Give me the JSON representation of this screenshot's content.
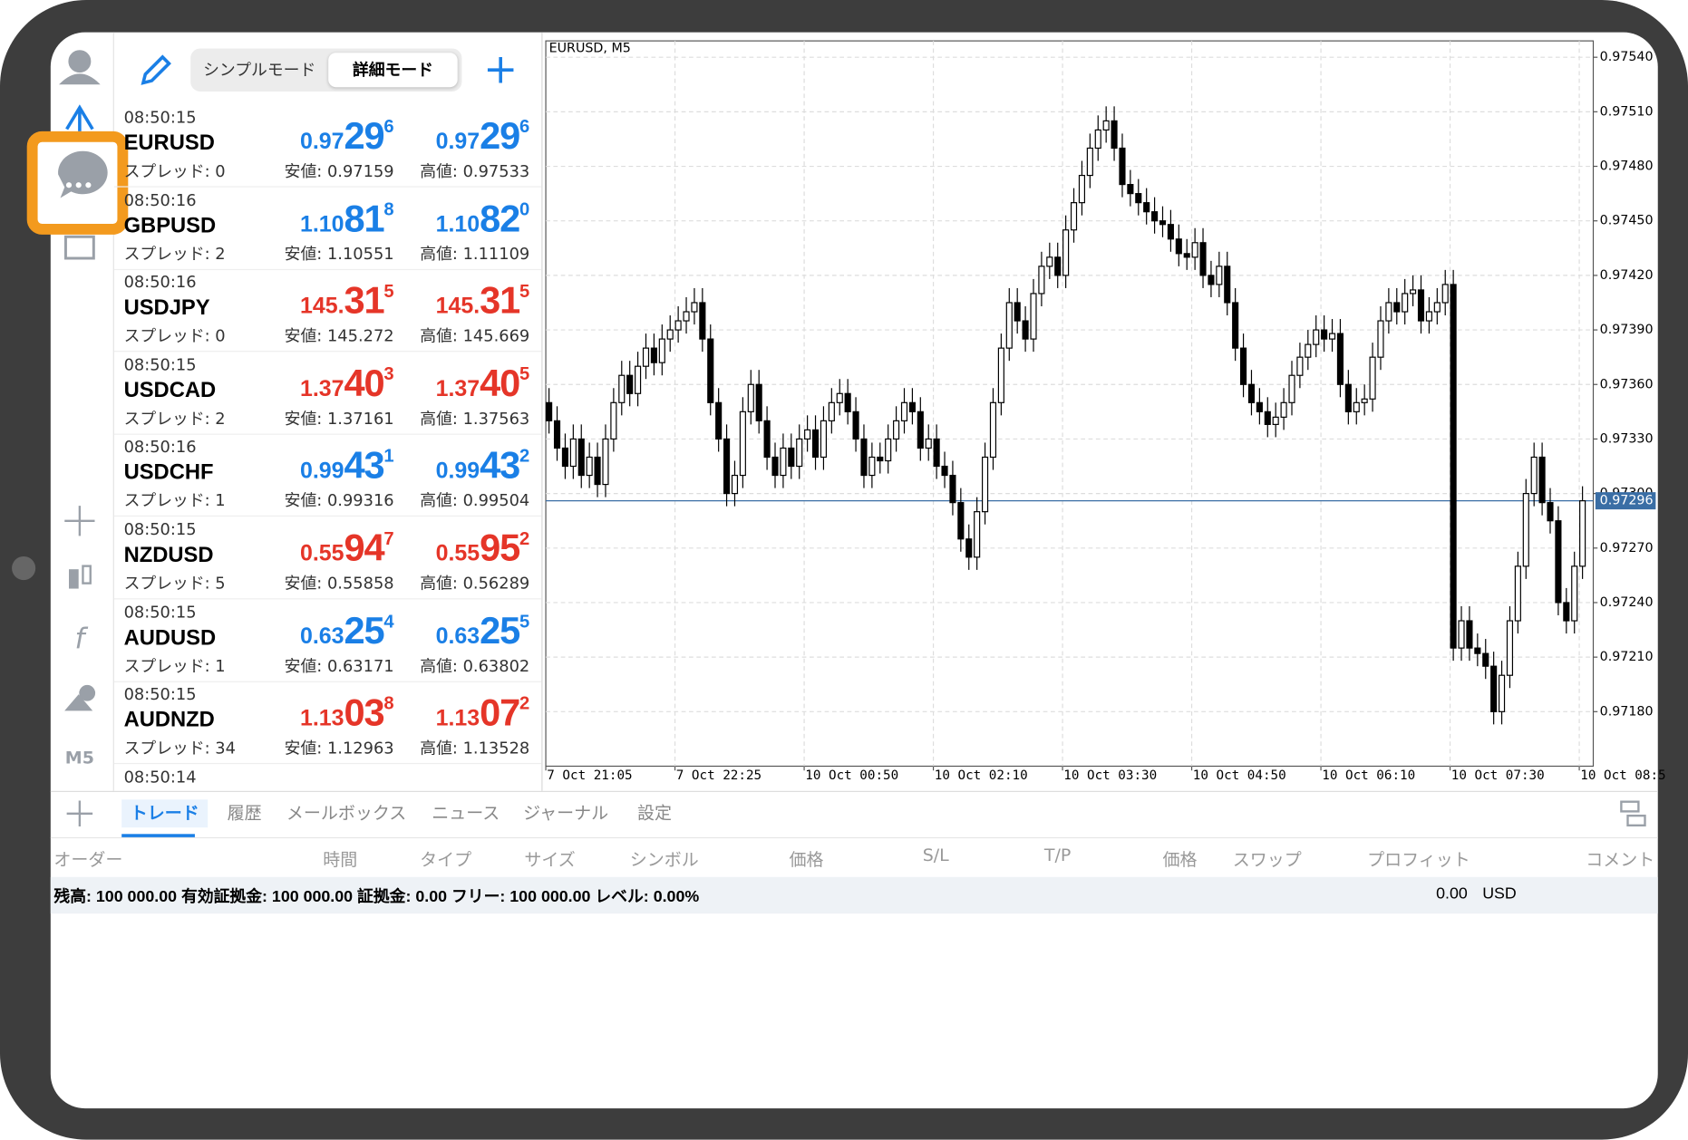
{
  "sidebar": {
    "timeframe": "M5"
  },
  "watchlist": {
    "modes": [
      "シンプルモード",
      "詳細モード"
    ],
    "rows": [
      {
        "time": "08:50:15",
        "symbol": "EURUSD",
        "spread": "スプレッド: 0",
        "color": "#1a7fe6",
        "bid": {
          "prefix": "0.97",
          "big": "29",
          "sup": "6"
        },
        "ask": {
          "prefix": "0.97",
          "big": "29",
          "sup": "6"
        },
        "low": "安値: 0.97159",
        "high": "高値: 0.97533"
      },
      {
        "time": "08:50:16",
        "symbol": "GBPUSD",
        "spread": "スプレッド: 2",
        "color": "#1a7fe6",
        "bid": {
          "prefix": "1.10",
          "big": "81",
          "sup": "8"
        },
        "ask": {
          "prefix": "1.10",
          "big": "82",
          "sup": "0"
        },
        "low": "安値: 1.10551",
        "high": "高値: 1.11109"
      },
      {
        "time": "08:50:16",
        "symbol": "USDJPY",
        "spread": "スプレッド: 0",
        "color": "#e53528",
        "bid": {
          "prefix": "145.",
          "big": "31",
          "sup": "5"
        },
        "ask": {
          "prefix": "145.",
          "big": "31",
          "sup": "5"
        },
        "low": "安値: 145.272",
        "high": "高値: 145.669"
      },
      {
        "time": "08:50:15",
        "symbol": "USDCAD",
        "spread": "スプレッド: 2",
        "color": "#e53528",
        "bid": {
          "prefix": "1.37",
          "big": "40",
          "sup": "3"
        },
        "ask": {
          "prefix": "1.37",
          "big": "40",
          "sup": "5"
        },
        "low": "安値: 1.37161",
        "high": "高値: 1.37563"
      },
      {
        "time": "08:50:16",
        "symbol": "USDCHF",
        "spread": "スプレッド: 1",
        "color": "#1a7fe6",
        "bid": {
          "prefix": "0.99",
          "big": "43",
          "sup": "1"
        },
        "ask": {
          "prefix": "0.99",
          "big": "43",
          "sup": "2"
        },
        "low": "安値: 0.99316",
        "high": "高値: 0.99504"
      },
      {
        "time": "08:50:15",
        "symbol": "NZDUSD",
        "spread": "スプレッド: 5",
        "color": "#e53528",
        "bid": {
          "prefix": "0.55",
          "big": "94",
          "sup": "7"
        },
        "ask": {
          "prefix": "0.55",
          "big": "95",
          "sup": "2"
        },
        "low": "安値: 0.55858",
        "high": "高値: 0.56289"
      },
      {
        "time": "08:50:15",
        "symbol": "AUDUSD",
        "spread": "スプレッド: 1",
        "color": "#1a7fe6",
        "bid": {
          "prefix": "0.63",
          "big": "25",
          "sup": "4"
        },
        "ask": {
          "prefix": "0.63",
          "big": "25",
          "sup": "5"
        },
        "low": "安値: 0.63171",
        "high": "高値: 0.63802"
      },
      {
        "time": "08:50:15",
        "symbol": "AUDNZD",
        "spread": "スプレッド: 34",
        "color": "#e53528",
        "bid": {
          "prefix": "1.13",
          "big": "03",
          "sup": "8"
        },
        "ask": {
          "prefix": "1.13",
          "big": "07",
          "sup": "2"
        },
        "low": "安値: 1.12963",
        "high": "高値: 1.13528"
      },
      {
        "time": "08:50:14"
      }
    ]
  },
  "chart_data": {
    "type": "candlestick",
    "title": "EURUSD, M5",
    "grid": true,
    "up_color": "#ffffff",
    "down_color": "#000000",
    "ylim": [
      0.9715,
      0.97549
    ],
    "yticks": [
      {
        "value": 0.9754,
        "label": "0.97540"
      },
      {
        "value": 0.9751,
        "label": "0.97510"
      },
      {
        "value": 0.9748,
        "label": "0.97480"
      },
      {
        "value": 0.9745,
        "label": "0.97450"
      },
      {
        "value": 0.9742,
        "label": "0.97420"
      },
      {
        "value": 0.9739,
        "label": "0.97390"
      },
      {
        "value": 0.9736,
        "label": "0.97360"
      },
      {
        "value": 0.9733,
        "label": "0.97330"
      },
      {
        "value": 0.973,
        "label": "0.97300"
      },
      {
        "value": 0.9727,
        "label": "0.97270"
      },
      {
        "value": 0.9724,
        "label": "0.97240"
      },
      {
        "value": 0.9721,
        "label": "0.97210"
      },
      {
        "value": 0.9718,
        "label": "0.97180"
      }
    ],
    "current_price": 0.97296,
    "current_color": "#3a6ea5",
    "time_labels": [
      "7 Oct 21:05",
      "7 Oct 22:25",
      "10 Oct 00:50",
      "10 Oct 02:10",
      "10 Oct 03:30",
      "10 Oct 04:50",
      "10 Oct 06:10",
      "10 Oct 07:30",
      "10 Oct 08:5"
    ],
    "candles": [
      [
        0.9735,
        0.97358,
        0.97333,
        0.9734
      ],
      [
        0.9734,
        0.97348,
        0.97318,
        0.97325
      ],
      [
        0.97325,
        0.97333,
        0.97308,
        0.97315
      ],
      [
        0.97315,
        0.97338,
        0.97308,
        0.9733
      ],
      [
        0.9733,
        0.97338,
        0.97303,
        0.9731
      ],
      [
        0.9731,
        0.97328,
        0.97303,
        0.9732
      ],
      [
        0.9732,
        0.97328,
        0.97298,
        0.97305
      ],
      [
        0.97305,
        0.97338,
        0.97298,
        0.9733
      ],
      [
        0.9733,
        0.97358,
        0.97323,
        0.9735
      ],
      [
        0.9735,
        0.97373,
        0.97343,
        0.97365
      ],
      [
        0.97365,
        0.97373,
        0.97348,
        0.97355
      ],
      [
        0.97355,
        0.97378,
        0.97348,
        0.9737
      ],
      [
        0.9737,
        0.97388,
        0.97363,
        0.9738
      ],
      [
        0.9738,
        0.97388,
        0.97365,
        0.97372
      ],
      [
        0.97372,
        0.97393,
        0.97365,
        0.97385
      ],
      [
        0.97385,
        0.97398,
        0.97378,
        0.9739
      ],
      [
        0.9739,
        0.97403,
        0.97383,
        0.97395
      ],
      [
        0.97395,
        0.97408,
        0.97388,
        0.974
      ],
      [
        0.974,
        0.97413,
        0.97393,
        0.97405
      ],
      [
        0.97405,
        0.97413,
        0.97378,
        0.97385
      ],
      [
        0.97385,
        0.97393,
        0.97343,
        0.9735
      ],
      [
        0.9735,
        0.97358,
        0.97323,
        0.9733
      ],
      [
        0.9733,
        0.97338,
        0.97293,
        0.973
      ],
      [
        0.973,
        0.97318,
        0.97293,
        0.9731
      ],
      [
        0.9731,
        0.97353,
        0.97303,
        0.97345
      ],
      [
        0.97345,
        0.97368,
        0.97338,
        0.9736
      ],
      [
        0.9736,
        0.97368,
        0.97333,
        0.9734
      ],
      [
        0.9734,
        0.97348,
        0.97313,
        0.9732
      ],
      [
        0.9732,
        0.97328,
        0.97303,
        0.9731
      ],
      [
        0.9731,
        0.97333,
        0.97303,
        0.97325
      ],
      [
        0.97325,
        0.97333,
        0.97308,
        0.97315
      ],
      [
        0.97315,
        0.97338,
        0.97308,
        0.9733
      ],
      [
        0.9733,
        0.97343,
        0.97323,
        0.97335
      ],
      [
        0.97335,
        0.97343,
        0.97313,
        0.9732
      ],
      [
        0.9732,
        0.97348,
        0.97313,
        0.9734
      ],
      [
        0.9734,
        0.97358,
        0.97333,
        0.9735
      ],
      [
        0.9735,
        0.97363,
        0.97343,
        0.97355
      ],
      [
        0.97355,
        0.97363,
        0.97338,
        0.97345
      ],
      [
        0.97345,
        0.97353,
        0.97323,
        0.9733
      ],
      [
        0.9733,
        0.97338,
        0.97303,
        0.9731
      ],
      [
        0.9731,
        0.97328,
        0.97303,
        0.9732
      ],
      [
        0.9732,
        0.97328,
        0.97311,
        0.97318
      ],
      [
        0.97318,
        0.97338,
        0.97311,
        0.9733
      ],
      [
        0.9733,
        0.97348,
        0.97323,
        0.9734
      ],
      [
        0.9734,
        0.97358,
        0.97333,
        0.9735
      ],
      [
        0.9735,
        0.97358,
        0.97338,
        0.97345
      ],
      [
        0.97345,
        0.97353,
        0.97318,
        0.97325
      ],
      [
        0.97325,
        0.97338,
        0.97318,
        0.9733
      ],
      [
        0.9733,
        0.97338,
        0.97308,
        0.97315
      ],
      [
        0.97315,
        0.97323,
        0.97303,
        0.9731
      ],
      [
        0.9731,
        0.97318,
        0.97288,
        0.97295
      ],
      [
        0.97295,
        0.97303,
        0.97268,
        0.97275
      ],
      [
        0.97275,
        0.97283,
        0.97258,
        0.97265
      ],
      [
        0.97265,
        0.97298,
        0.97258,
        0.9729
      ],
      [
        0.9729,
        0.97328,
        0.97283,
        0.9732
      ],
      [
        0.9732,
        0.97358,
        0.97313,
        0.9735
      ],
      [
        0.9735,
        0.97388,
        0.97343,
        0.9738
      ],
      [
        0.9738,
        0.97413,
        0.97373,
        0.97405
      ],
      [
        0.97405,
        0.97413,
        0.97388,
        0.97395
      ],
      [
        0.97395,
        0.97403,
        0.97378,
        0.97385
      ],
      [
        0.97385,
        0.97418,
        0.97378,
        0.9741
      ],
      [
        0.9741,
        0.97433,
        0.97403,
        0.97425
      ],
      [
        0.97425,
        0.97438,
        0.97418,
        0.9743
      ],
      [
        0.9743,
        0.97438,
        0.97413,
        0.9742
      ],
      [
        0.9742,
        0.97453,
        0.97413,
        0.97445
      ],
      [
        0.97445,
        0.97468,
        0.97438,
        0.9746
      ],
      [
        0.9746,
        0.97483,
        0.97453,
        0.97475
      ],
      [
        0.97475,
        0.97498,
        0.97468,
        0.9749
      ],
      [
        0.9749,
        0.97508,
        0.97483,
        0.975
      ],
      [
        0.975,
        0.97513,
        0.97493,
        0.97505
      ],
      [
        0.97505,
        0.97513,
        0.97483,
        0.9749
      ],
      [
        0.9749,
        0.97498,
        0.97463,
        0.9747
      ],
      [
        0.9747,
        0.97478,
        0.97458,
        0.97465
      ],
      [
        0.97465,
        0.97473,
        0.97453,
        0.9746
      ],
      [
        0.9746,
        0.97468,
        0.97448,
        0.97455
      ],
      [
        0.97455,
        0.97463,
        0.97443,
        0.9745
      ],
      [
        0.9745,
        0.97458,
        0.97441,
        0.97448
      ],
      [
        0.97448,
        0.97456,
        0.97433,
        0.9744
      ],
      [
        0.9744,
        0.97448,
        0.97425,
        0.97432
      ],
      [
        0.97432,
        0.9744,
        0.97423,
        0.9743
      ],
      [
        0.9743,
        0.97446,
        0.97423,
        0.97438
      ],
      [
        0.97438,
        0.97446,
        0.97413,
        0.9742
      ],
      [
        0.9742,
        0.97428,
        0.97408,
        0.97415
      ],
      [
        0.97415,
        0.97433,
        0.97408,
        0.97425
      ],
      [
        0.97425,
        0.97433,
        0.97398,
        0.97405
      ],
      [
        0.97405,
        0.97413,
        0.97373,
        0.9738
      ],
      [
        0.9738,
        0.97388,
        0.97353,
        0.9736
      ],
      [
        0.9736,
        0.97368,
        0.97343,
        0.9735
      ],
      [
        0.9735,
        0.97358,
        0.97338,
        0.97345
      ],
      [
        0.97345,
        0.97353,
        0.97331,
        0.97338
      ],
      [
        0.97338,
        0.9735,
        0.97331,
        0.97342
      ],
      [
        0.97342,
        0.97358,
        0.97335,
        0.9735
      ],
      [
        0.9735,
        0.97373,
        0.97343,
        0.97365
      ],
      [
        0.97365,
        0.97383,
        0.97358,
        0.97375
      ],
      [
        0.97375,
        0.9739,
        0.97368,
        0.97382
      ],
      [
        0.97382,
        0.97398,
        0.97375,
        0.9739
      ],
      [
        0.9739,
        0.97398,
        0.97378,
        0.97385
      ],
      [
        0.97385,
        0.97396,
        0.97378,
        0.97388
      ],
      [
        0.97388,
        0.97396,
        0.97353,
        0.9736
      ],
      [
        0.9736,
        0.97368,
        0.97338,
        0.97345
      ],
      [
        0.97345,
        0.97358,
        0.97338,
        0.9735
      ],
      [
        0.9735,
        0.9736,
        0.97343,
        0.97352
      ],
      [
        0.97352,
        0.97383,
        0.97345,
        0.97375
      ],
      [
        0.97375,
        0.97403,
        0.97368,
        0.97395
      ],
      [
        0.97395,
        0.97413,
        0.97388,
        0.97405
      ],
      [
        0.97405,
        0.97413,
        0.97393,
        0.974
      ],
      [
        0.974,
        0.97418,
        0.97393,
        0.9741
      ],
      [
        0.9741,
        0.9742,
        0.97403,
        0.97412
      ],
      [
        0.97412,
        0.9742,
        0.97388,
        0.97395
      ],
      [
        0.97395,
        0.97408,
        0.97388,
        0.974
      ],
      [
        0.974,
        0.97413,
        0.97393,
        0.97405
      ],
      [
        0.97405,
        0.97423,
        0.97398,
        0.97415
      ],
      [
        0.97415,
        0.97423,
        0.97208,
        0.97215
      ],
      [
        0.97215,
        0.97238,
        0.97208,
        0.9723
      ],
      [
        0.9723,
        0.97238,
        0.97208,
        0.97215
      ],
      [
        0.97215,
        0.97223,
        0.97205,
        0.97212
      ],
      [
        0.97212,
        0.9722,
        0.97198,
        0.97205
      ],
      [
        0.97205,
        0.97213,
        0.97173,
        0.9718
      ],
      [
        0.9718,
        0.97208,
        0.97173,
        0.972
      ],
      [
        0.972,
        0.97238,
        0.97193,
        0.9723
      ],
      [
        0.9723,
        0.97268,
        0.97223,
        0.9726
      ],
      [
        0.9726,
        0.97308,
        0.97253,
        0.973
      ],
      [
        0.973,
        0.97328,
        0.97293,
        0.9732
      ],
      [
        0.9732,
        0.97328,
        0.97288,
        0.97295
      ],
      [
        0.97295,
        0.97303,
        0.97278,
        0.97285
      ],
      [
        0.97285,
        0.97293,
        0.97233,
        0.9724
      ],
      [
        0.9724,
        0.97248,
        0.97223,
        0.9723
      ],
      [
        0.9723,
        0.97268,
        0.97223,
        0.9726
      ],
      [
        0.9726,
        0.97304,
        0.97253,
        0.97296
      ]
    ]
  },
  "toolbox": {
    "tabs": [
      "トレード",
      "履歴",
      "メールボックス",
      "ニュース",
      "ジャーナル",
      "設定"
    ],
    "active_tab": 0,
    "columns": [
      "オーダー",
      "時間",
      "タイプ",
      "サイズ",
      "シンボル",
      "価格",
      "S/L",
      "T/P",
      "価格",
      "スワップ",
      "プロフィット",
      "コメント"
    ],
    "balance": "残高: 100 000.00 有効証拠金: 100 000.00 証拠金: 0.00 フリー: 100 000.00 レベル: 0.00%",
    "profit": "0.00",
    "currency": "USD"
  }
}
